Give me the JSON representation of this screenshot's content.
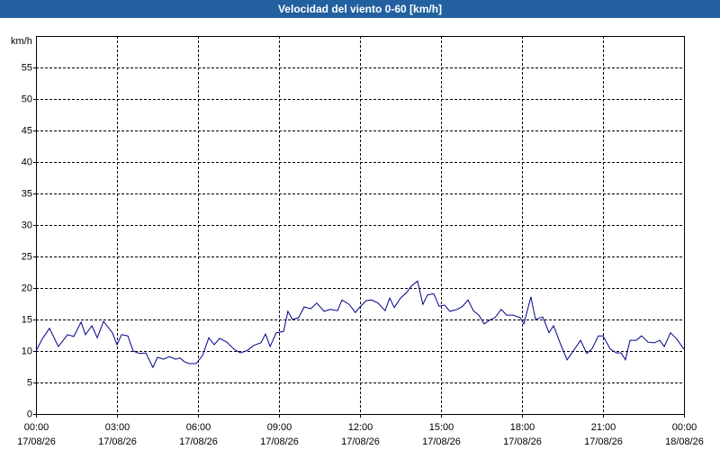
{
  "chart_data": {
    "type": "line",
    "title": "Velocidad del viento 0-60 [km/h]",
    "y_label": "km/h",
    "xlim": [
      0,
      24
    ],
    "ylim": [
      0,
      60
    ],
    "yticks": [
      0,
      5,
      10,
      15,
      20,
      25,
      30,
      35,
      40,
      45,
      50,
      55
    ],
    "xticks": [
      {
        "value": 0,
        "label": "00:00"
      },
      {
        "value": 3,
        "label": "03:00"
      },
      {
        "value": 6,
        "label": "06:00"
      },
      {
        "value": 9,
        "label": "09:00"
      },
      {
        "value": 12,
        "label": "12:00"
      },
      {
        "value": 15,
        "label": "15:00"
      },
      {
        "value": 18,
        "label": "18:00"
      },
      {
        "value": 21,
        "label": "21:00"
      },
      {
        "value": 24,
        "label": "00:00"
      }
    ],
    "xtick_dates": [
      "17/08/26",
      "17/08/26",
      "17/08/26",
      "17/08/26",
      "17/08/26",
      "17/08/26",
      "17/08/26",
      "17/08/26",
      "18/08/26"
    ],
    "grid": true,
    "series": [
      {
        "color": "#00008b",
        "x": [
          0,
          0.23,
          0.5,
          0.83,
          1.17,
          1.4,
          1.67,
          1.83,
          2.07,
          2.27,
          2.5,
          2.83,
          3,
          3.17,
          3.4,
          3.6,
          3.83,
          4.07,
          4.33,
          4.5,
          4.73,
          4.93,
          5.17,
          5.33,
          5.5,
          5.67,
          5.93,
          6.17,
          6.4,
          6.6,
          6.8,
          7.07,
          7.33,
          7.57,
          7.83,
          8.07,
          8.33,
          8.5,
          8.67,
          8.9,
          9.17,
          9.33,
          9.5,
          9.73,
          9.93,
          10.17,
          10.4,
          10.67,
          10.9,
          11.17,
          11.33,
          11.6,
          11.83,
          12,
          12.23,
          12.43,
          12.67,
          12.93,
          13.1,
          13.27,
          13.5,
          13.73,
          13.9,
          14.13,
          14.33,
          14.5,
          14.73,
          14.93,
          15.13,
          15.33,
          15.6,
          15.8,
          16,
          16.2,
          16.4,
          16.6,
          16.8,
          17,
          17.23,
          17.43,
          17.67,
          17.93,
          18.07,
          18.33,
          18.5,
          18.77,
          19,
          19.17,
          19.4,
          19.67,
          19.9,
          20.17,
          20.4,
          20.6,
          20.83,
          21,
          21.27,
          21.5,
          21.67,
          21.83,
          22,
          22.23,
          22.43,
          22.67,
          22.9,
          23.1,
          23.27,
          23.5,
          23.73,
          23.93,
          24
        ],
        "values": [
          10,
          11.9,
          13.6,
          10.7,
          12.6,
          12.3,
          14.6,
          12.6,
          14,
          12.1,
          14.7,
          12.9,
          11,
          12.6,
          12.4,
          10,
          9.6,
          9.7,
          7.4,
          9,
          8.7,
          9.1,
          8.7,
          8.9,
          8.3,
          8,
          8,
          9.3,
          12.1,
          11,
          12,
          11.4,
          10.3,
          9.7,
          10.1,
          10.9,
          11.3,
          12.7,
          10.7,
          12.9,
          13.1,
          16.3,
          15,
          15.3,
          17,
          16.7,
          17.6,
          16.3,
          16.6,
          16.4,
          18.1,
          17.4,
          16.1,
          17,
          18,
          18.1,
          17.6,
          16.4,
          18.4,
          16.9,
          18.4,
          19.3,
          20.3,
          21.1,
          17.4,
          18.9,
          19.1,
          17.1,
          17.3,
          16.3,
          16.6,
          17.1,
          18.1,
          16.4,
          15.7,
          14.3,
          14.9,
          15.3,
          16.6,
          15.7,
          15.7,
          15.3,
          14.3,
          18.6,
          15,
          15.4,
          12.9,
          14,
          11.4,
          8.6,
          10,
          11.7,
          9.6,
          10.4,
          12.4,
          12.4,
          10.3,
          9.7,
          9.7,
          8.6,
          11.7,
          11.7,
          12.4,
          11.4,
          11.3,
          11.7,
          10.7,
          12.9,
          11.9,
          10.7,
          10.3
        ]
      }
    ]
  }
}
